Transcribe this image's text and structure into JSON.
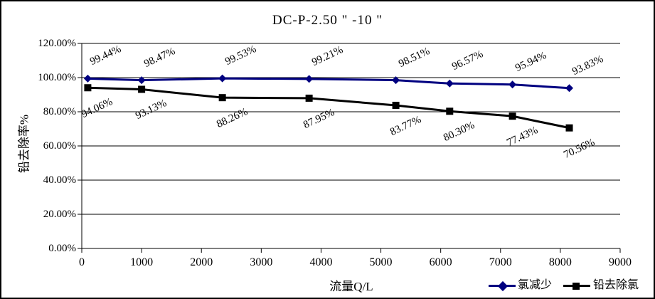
{
  "title": "DC-P-2.50 \" -10 \"",
  "chart_data": {
    "type": "line",
    "title": "DC-P-2.50 \" -10 \"",
    "xlabel": "流量Q/L",
    "ylabel": "铅去除率%",
    "xlim": [
      0,
      9000
    ],
    "ylim": [
      0,
      120
    ],
    "grid": "horizontal",
    "legend_position": "bottom-right",
    "x": [
      100,
      1000,
      2350,
      3800,
      5250,
      6150,
      7200,
      8150
    ],
    "series": [
      {
        "name": "氯减少",
        "color": "#000080",
        "marker": "diamond",
        "values": [
          99.44,
          98.47,
          99.53,
          99.21,
          98.51,
          96.57,
          95.94,
          93.83
        ],
        "labels": [
          "99.44%",
          "98.47%",
          "99.53%",
          "99.21%",
          "98.51%",
          "96.57%",
          "95.94%",
          "93.83%"
        ]
      },
      {
        "name": "铅去除氯",
        "color": "#000000",
        "marker": "square",
        "values": [
          94.06,
          93.13,
          88.26,
          87.95,
          83.77,
          80.3,
          77.43,
          70.56
        ],
        "labels": [
          "94.06%",
          "93.13%",
          "88.26%",
          "87.95%",
          "83.77%",
          "80.30%",
          "77.43%",
          "70.56%"
        ]
      }
    ],
    "y_ticks": [
      {
        "value": 0,
        "label": "0.00%"
      },
      {
        "value": 20,
        "label": "20.00%"
      },
      {
        "value": 40,
        "label": "40.00%"
      },
      {
        "value": 60,
        "label": "60.00%"
      },
      {
        "value": 80,
        "label": "80.00%"
      },
      {
        "value": 100,
        "label": "100.00%"
      },
      {
        "value": 120,
        "label": "120.00%"
      }
    ],
    "x_ticks": [
      {
        "value": 0,
        "label": "0"
      },
      {
        "value": 1000,
        "label": "1000"
      },
      {
        "value": 2000,
        "label": "2000"
      },
      {
        "value": 3000,
        "label": "3000"
      },
      {
        "value": 4000,
        "label": "4000"
      },
      {
        "value": 5000,
        "label": "5000"
      },
      {
        "value": 6000,
        "label": "6000"
      },
      {
        "value": 7000,
        "label": "7000"
      },
      {
        "value": 8000,
        "label": "8000"
      },
      {
        "value": 9000,
        "label": "9000"
      }
    ]
  },
  "colors": {
    "axis": "#000000",
    "grid": "#000000",
    "series1": "#000080",
    "series2": "#000000"
  }
}
